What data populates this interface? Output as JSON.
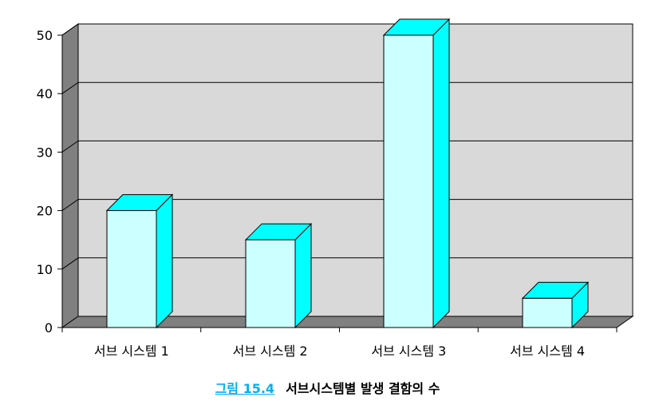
{
  "chart_data": {
    "type": "bar",
    "categories": [
      "서브 시스템 1",
      "서브 시스템 2",
      "서브 시스템 3",
      "서브 시스템 4"
    ],
    "values": [
      20,
      15,
      50,
      5
    ],
    "yticks": [
      "0",
      "10",
      "20",
      "30",
      "40",
      "50"
    ],
    "ylim": [
      0,
      50
    ],
    "grid": true,
    "three_d": true,
    "colors": {
      "bar_front": "#ccffff",
      "bar_side": "#00ffff",
      "wall": "#d9d9d9",
      "wall_side": "#808080",
      "floor": "#808080"
    }
  },
  "caption": {
    "label": "그림 15.4",
    "text": "서브시스템별 발생 결함의 수"
  }
}
